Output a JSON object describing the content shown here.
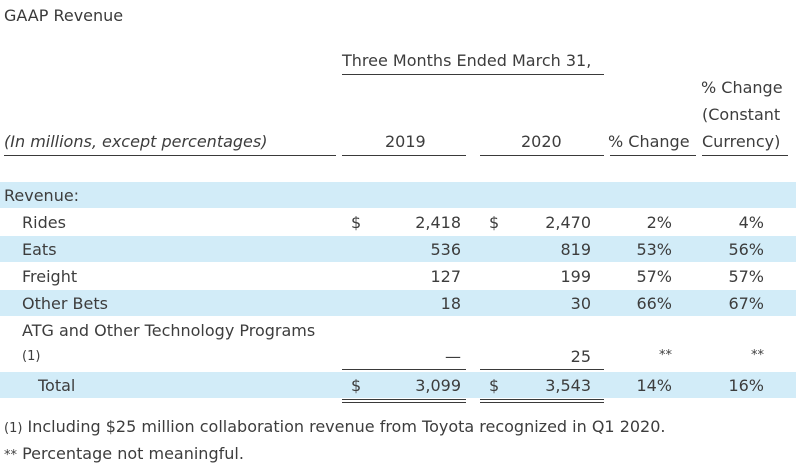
{
  "title": "GAAP Revenue",
  "header": {
    "period": "Three Months Ended March 31,",
    "units": "(In millions, except percentages)",
    "col_2019": "2019",
    "col_2020": "2020",
    "col_change": "% Change",
    "col_constant_1": "% Change",
    "col_constant_2": "(Constant",
    "col_constant_3": "Currency)"
  },
  "section_label": "Revenue:",
  "rows": [
    {
      "label": "Rides",
      "cur1": "$",
      "v2019": "2,418",
      "cur2": "$",
      "v2020": "2,470",
      "change": "2%",
      "constant": "4%"
    },
    {
      "label": "Eats",
      "v2019": "536",
      "v2020": "819",
      "change": "53%",
      "constant": "56%"
    },
    {
      "label": "Freight",
      "v2019": "127",
      "v2020": "199",
      "change": "57%",
      "constant": "57%"
    },
    {
      "label": "Other Bets",
      "v2019": "18",
      "v2020": "30",
      "change": "66%",
      "constant": "67%"
    },
    {
      "label": "ATG and Other Technology Programs",
      "footnote_ref": "(1)",
      "v2019": "—",
      "v2020": "25",
      "change": "**",
      "constant": "**"
    }
  ],
  "total": {
    "label": "Total",
    "cur1": "$",
    "v2019": "3,099",
    "cur2": "$",
    "v2020": "3,543",
    "change": "14%",
    "constant": "16%"
  },
  "footnotes": {
    "f1_marker": "(1)",
    "f1_text": "Including $25 million collaboration revenue from Toyota recognized in Q1 2020.",
    "f2_marker": "**",
    "f2_text": "Percentage not meaningful."
  }
}
